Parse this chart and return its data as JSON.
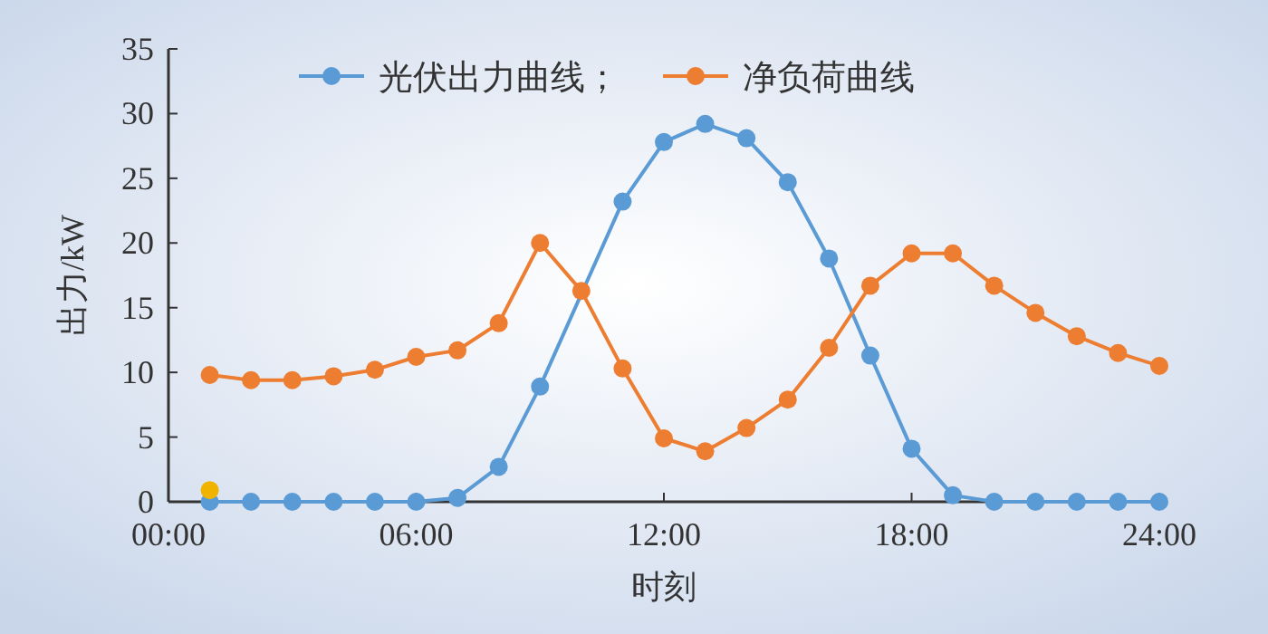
{
  "chart_data": {
    "type": "line",
    "xlabel": "时刻",
    "ylabel": "出力/kW",
    "x": [
      1,
      2,
      3,
      4,
      5,
      6,
      7,
      8,
      9,
      10,
      11,
      12,
      13,
      14,
      15,
      16,
      17,
      18,
      19,
      20,
      21,
      22,
      23,
      24
    ],
    "series": [
      {
        "name": "光伏出力曲线；",
        "color": "#5b9bd5",
        "values": [
          0,
          0,
          0,
          0,
          0,
          0,
          0.3,
          2.7,
          8.9,
          null,
          23.2,
          27.8,
          29.2,
          28.1,
          24.7,
          18.8,
          11.3,
          4.1,
          0.5,
          0,
          0,
          0,
          0,
          0
        ]
      },
      {
        "name": "净负荷曲线",
        "color": "#ed7d31",
        "values": [
          9.8,
          9.4,
          9.4,
          9.7,
          10.2,
          11.2,
          11.7,
          13.8,
          20.0,
          16.3,
          10.3,
          4.9,
          3.9,
          5.7,
          7.9,
          11.9,
          16.7,
          19.2,
          19.2,
          16.7,
          14.6,
          12.8,
          11.5,
          10.5
        ]
      },
      {
        "type": "scatter",
        "color": "#f0b400",
        "x": [
          1
        ],
        "values": [
          0.9
        ]
      }
    ],
    "xlim": [
      0,
      24
    ],
    "xticks": [
      {
        "value": 0,
        "label": "00:00"
      },
      {
        "value": 6,
        "label": "06:00"
      },
      {
        "value": 12,
        "label": "12:00"
      },
      {
        "value": 18,
        "label": "18:00"
      },
      {
        "value": 24,
        "label": "24:00"
      }
    ],
    "ylim": [
      0,
      35
    ],
    "yticks": [
      0,
      5,
      10,
      15,
      20,
      25,
      30,
      35
    ],
    "marker": "circle",
    "legend": "top",
    "grid": false
  }
}
